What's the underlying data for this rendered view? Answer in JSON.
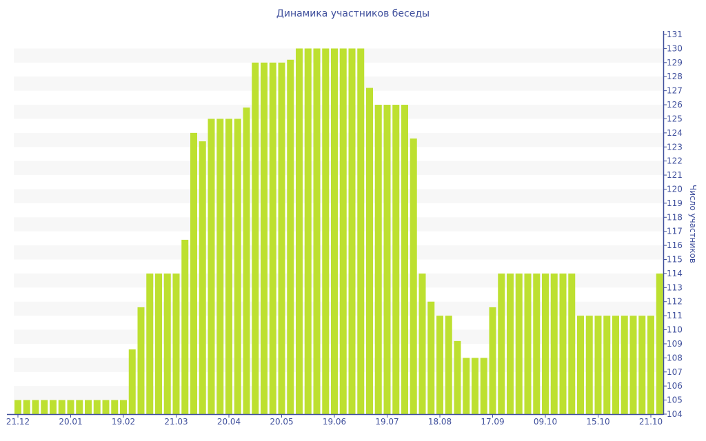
{
  "chart_data": {
    "type": "bar",
    "title": "Динамика участников беседы",
    "xlabel": "",
    "ylabel": "Число участников",
    "ylim": [
      104,
      131
    ],
    "yticks": [
      104,
      105,
      106,
      107,
      108,
      109,
      110,
      111,
      112,
      113,
      114,
      115,
      116,
      117,
      118,
      119,
      120,
      121,
      122,
      123,
      124,
      125,
      126,
      127,
      128,
      129,
      130,
      131
    ],
    "y_axis_side": "right",
    "grid": "alternating horizontal bands",
    "bar_color": "#bde030",
    "x_tick_labels": [
      {
        "bar_index": 0,
        "label": "21.12"
      },
      {
        "bar_index": 6,
        "label": "20.01"
      },
      {
        "bar_index": 12,
        "label": "19.02"
      },
      {
        "bar_index": 18,
        "label": "21.03"
      },
      {
        "bar_index": 24,
        "label": "20.04"
      },
      {
        "bar_index": 30,
        "label": "20.05"
      },
      {
        "bar_index": 36,
        "label": "19.06"
      },
      {
        "bar_index": 42,
        "label": "19.07"
      },
      {
        "bar_index": 48,
        "label": "18.08"
      },
      {
        "bar_index": 54,
        "label": "17.09"
      },
      {
        "bar_index": 60,
        "label": "09.10"
      },
      {
        "bar_index": 66,
        "label": "15.10"
      },
      {
        "bar_index": 72,
        "label": "21.10"
      }
    ],
    "values": [
      105,
      105,
      105,
      105,
      105,
      105,
      105,
      105,
      105,
      105,
      105,
      105,
      105,
      108.6,
      111.6,
      114,
      114,
      114,
      114,
      116.4,
      124,
      123.4,
      125,
      125,
      125,
      125,
      125.8,
      129,
      129,
      129,
      129,
      129.2,
      130,
      130,
      130,
      130,
      130,
      130,
      130,
      130,
      127.2,
      126,
      126,
      126,
      126,
      123.6,
      114,
      112,
      111,
      111,
      109.2,
      108,
      108,
      108,
      111.6,
      114,
      114,
      114,
      114,
      114,
      114,
      114,
      114,
      114,
      111,
      111,
      111,
      111,
      111,
      111,
      111,
      111,
      111,
      114
    ]
  }
}
